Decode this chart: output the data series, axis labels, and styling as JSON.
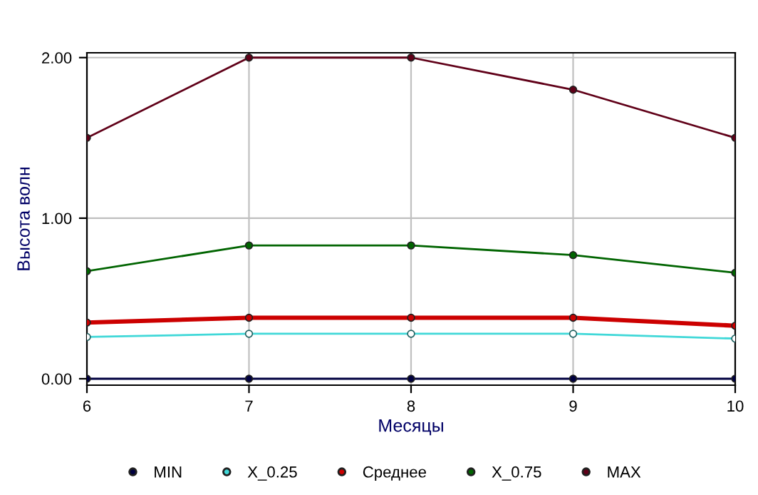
{
  "chart_data": {
    "type": "line",
    "xlabel": "Месяцы",
    "ylabel": "Высота волн",
    "x": [
      6,
      7,
      8,
      9,
      10
    ],
    "series": [
      {
        "name": "MIN",
        "color": "#000040",
        "values": [
          0,
          0,
          0,
          0,
          0
        ]
      },
      {
        "name": "X_0.25",
        "color": "#40d8d8",
        "values": [
          0.26,
          0.28,
          0.28,
          0.28,
          0.25
        ]
      },
      {
        "name": "Среднее",
        "color": "#cc0000",
        "values": [
          0.35,
          0.38,
          0.38,
          0.38,
          0.33
        ]
      },
      {
        "name": "X_0.75",
        "color": "#006400",
        "values": [
          0.67,
          0.83,
          0.83,
          0.77,
          0.66
        ]
      },
      {
        "name": "MAX",
        "color": "#600018",
        "values": [
          1.5,
          2.0,
          2.0,
          1.8,
          1.5
        ]
      }
    ],
    "xlim": [
      6,
      10
    ],
    "ylim": [
      -0.04,
      2.03
    ],
    "xticks": [
      6,
      7,
      8,
      9,
      10
    ],
    "yticks": [
      {
        "value": 0,
        "label": "0.00"
      },
      {
        "value": 1,
        "label": "1.00"
      },
      {
        "value": 2,
        "label": "2.00"
      }
    ],
    "grid": true,
    "legend": "bottom",
    "marker": "circle",
    "line_style": "solid"
  }
}
